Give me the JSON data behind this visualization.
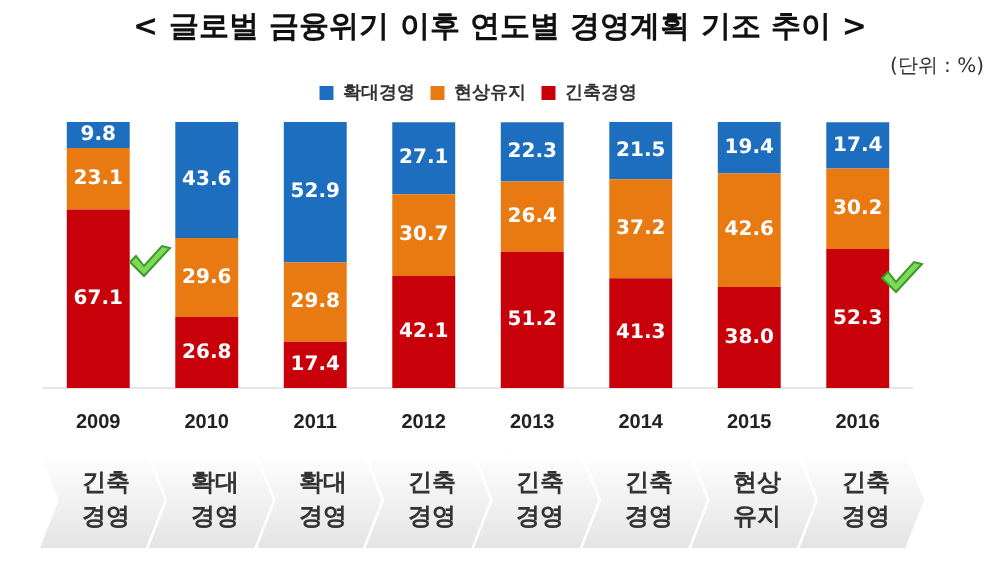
{
  "chart_data": {
    "type": "bar",
    "title": "< 글로벌 금융위기 이후 연도별 경영계획 기조 추이 >",
    "stacked": true,
    "legend": "top",
    "grid": false,
    "ylim": [
      0,
      100
    ],
    "categories": [
      "2009",
      "2010",
      "2011",
      "2012",
      "2013",
      "2014",
      "2015",
      "2016"
    ],
    "series": [
      {
        "name": "긴축경영",
        "color": "#c8000a",
        "values": [
          67.1,
          26.8,
          17.4,
          42.1,
          51.2,
          41.3,
          38.0,
          52.3
        ],
        "value_labels": [
          "67.1",
          "26.8",
          "17.4",
          "42.1",
          "51.2",
          "41.3",
          "38.0",
          "52.3"
        ]
      },
      {
        "name": "현상유지",
        "color": "#e97a12",
        "values": [
          23.1,
          29.6,
          29.8,
          30.7,
          26.4,
          37.2,
          42.6,
          30.2
        ],
        "value_labels": [
          "23.1",
          "29.6",
          "29.8",
          "30.7",
          "26.4",
          "37.2",
          "42.6",
          "30.2"
        ]
      },
      {
        "name": "확대경영",
        "color": "#1e6ec0",
        "values": [
          9.8,
          43.6,
          52.9,
          27.1,
          22.3,
          21.5,
          19.4,
          17.4
        ],
        "value_labels": [
          "9.8",
          "43.6",
          "52.9",
          "27.1",
          "22.3",
          "21.5",
          "19.4",
          "17.4"
        ]
      }
    ],
    "annotations": [
      "(단위 : %)",
      "긴축 경영",
      "확대 경영",
      "확대 경영",
      "긴축 경영",
      "긴축 경영",
      "긴축 경영",
      "현상 유지",
      "긴축 경영"
    ]
  }
}
